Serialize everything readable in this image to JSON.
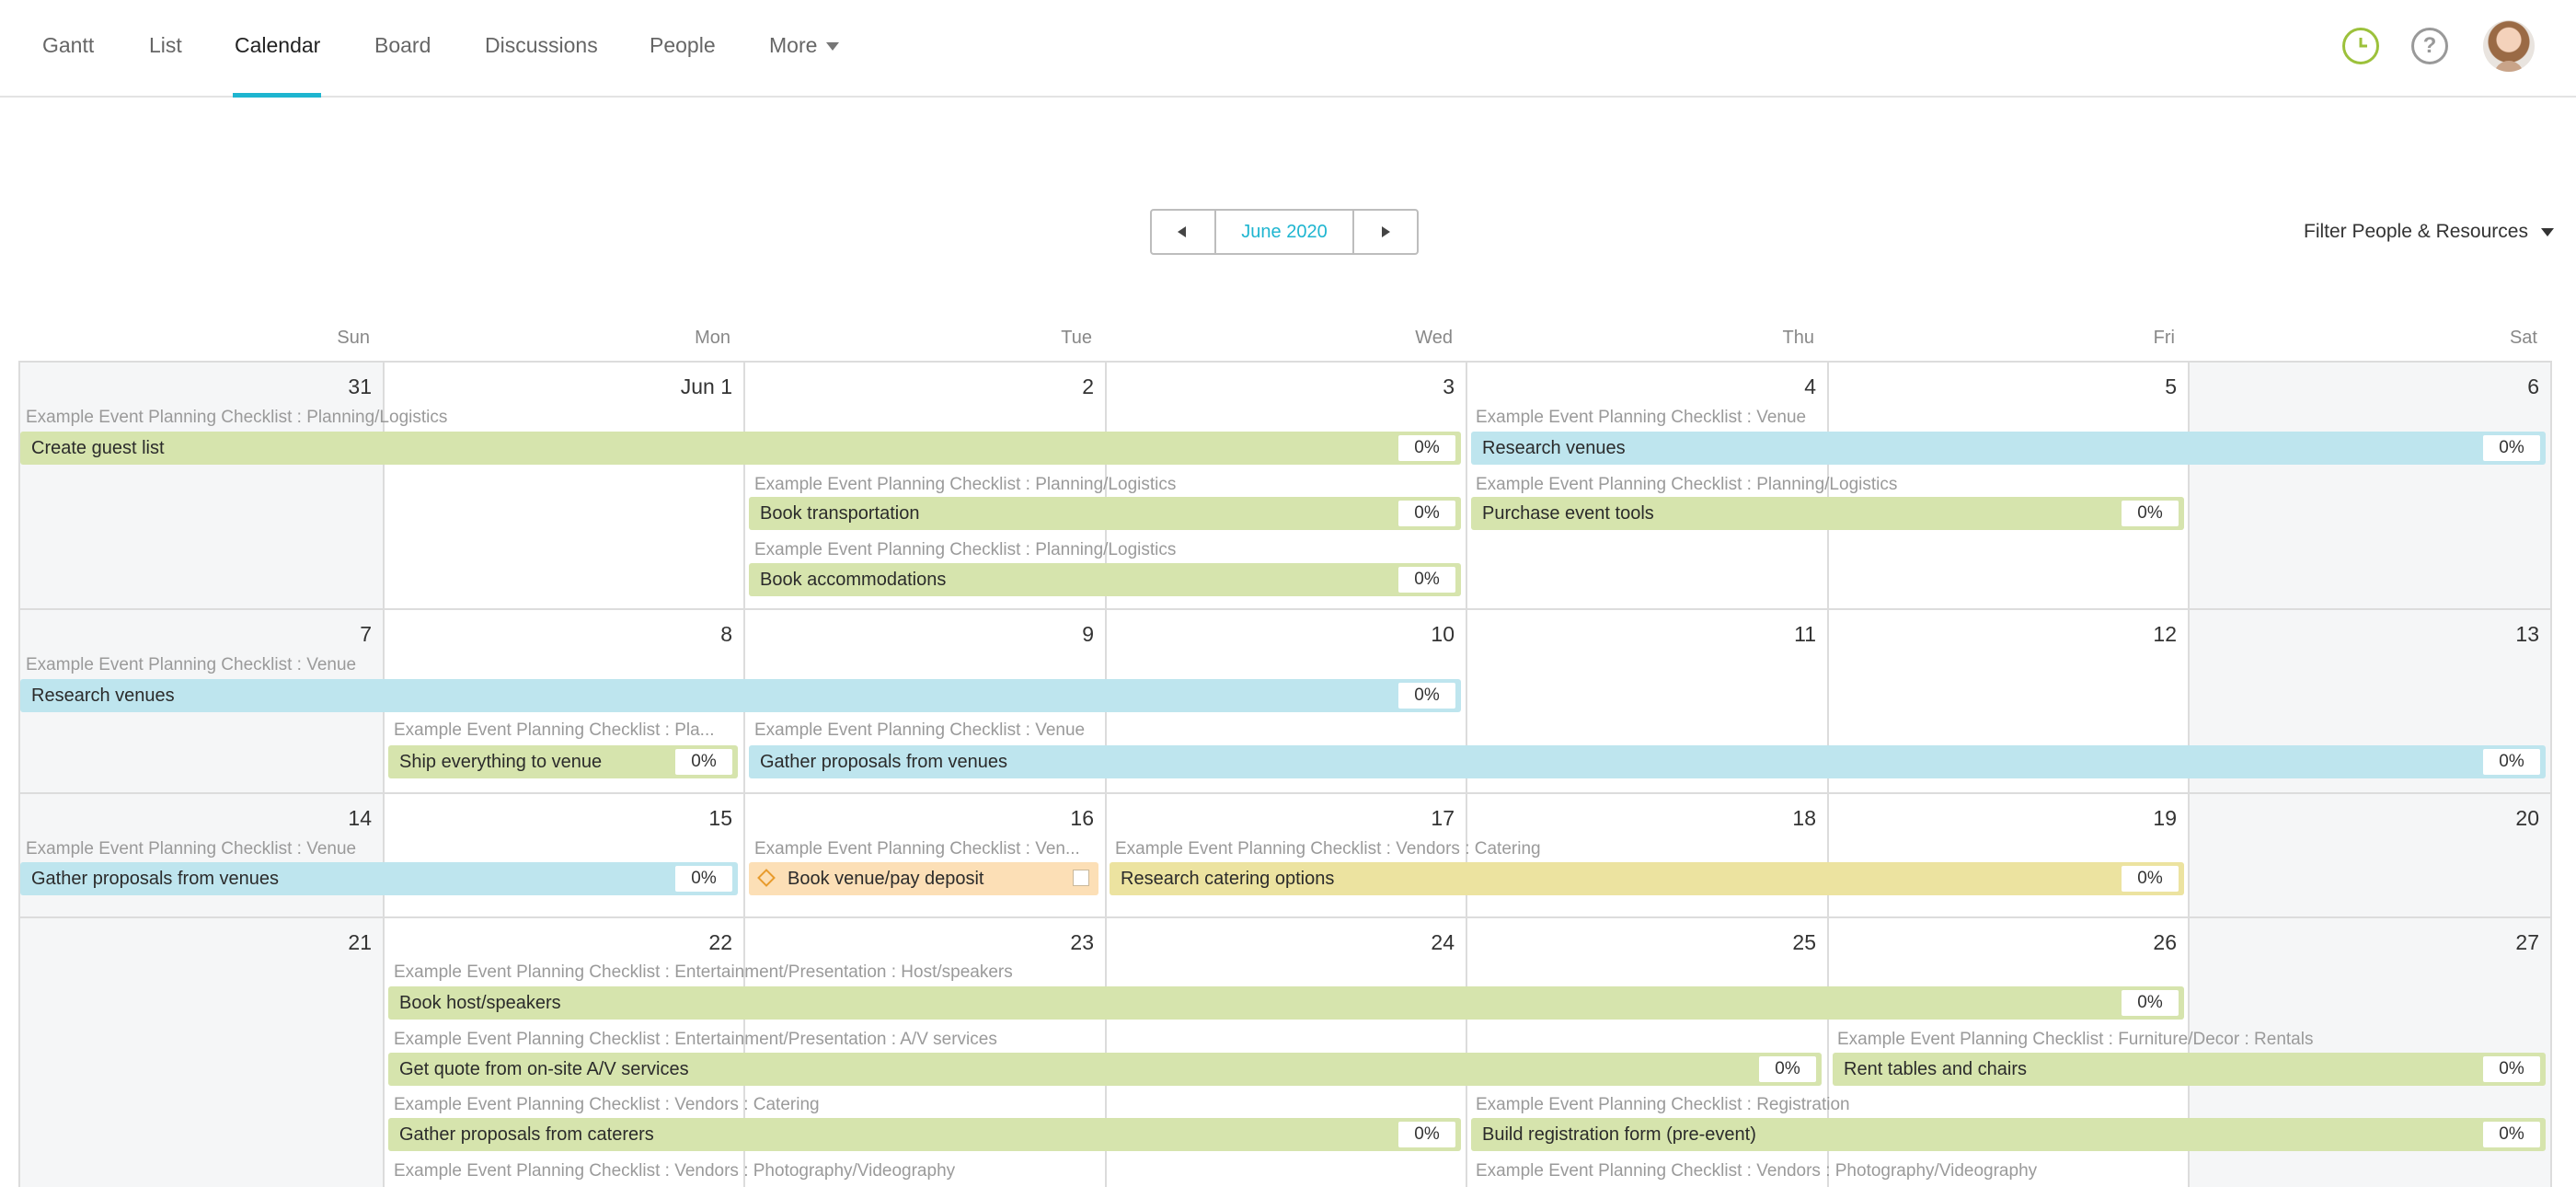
{
  "nav": {
    "tabs": [
      "Gantt",
      "List",
      "Calendar",
      "Board",
      "Discussions",
      "People",
      "More"
    ],
    "active_tab": "Calendar",
    "accent_color": "#1eb5d0",
    "icons": [
      "clock-icon",
      "help-icon",
      "avatar"
    ]
  },
  "month_nav": {
    "label": "June 2020"
  },
  "filter": {
    "label": "Filter People & Resources"
  },
  "calendar": {
    "weekdays": [
      "Sun",
      "Mon",
      "Tue",
      "Wed",
      "Thu",
      "Fri",
      "Sat"
    ],
    "weeks": [
      [
        "31",
        "Jun 1",
        "2",
        "3",
        "4",
        "5",
        "6"
      ],
      [
        "7",
        "8",
        "9",
        "10",
        "11",
        "12",
        "13"
      ],
      [
        "14",
        "15",
        "16",
        "17",
        "18",
        "19",
        "20"
      ],
      [
        "21",
        "22",
        "23",
        "24",
        "25",
        "26",
        "27"
      ]
    ],
    "context_labels": [
      "Example Event Planning Checklist : Planning/Logistics",
      "Example Event Planning Checklist : Venue",
      "Example Event Planning Checklist : Pla...",
      "Example Event Planning Checklist : Ven...",
      "Example Event Planning Checklist : Vendors : Catering",
      "Example Event Planning Checklist : Entertainment/Presentation : Host/speakers",
      "Example Event Planning Checklist : Entertainment/Presentation : A/V services",
      "Example Event Planning Checklist : Furniture/Decor : Rentals",
      "Example Event Planning Checklist : Registration",
      "Example Event Planning Checklist : Vendors : Photography/Videography"
    ],
    "tasks": [
      "Create guest list",
      "Research venues",
      "Book transportation",
      "Purchase event tools",
      "Book accommodations",
      "Ship everything to venue",
      "Gather proposals from venues",
      "Book venue/pay deposit",
      "Research catering options",
      "Book host/speakers",
      "Get quote from on-site A/V services",
      "Rent tables and chairs",
      "Gather proposals from caterers",
      "Build registration form (pre-event)"
    ],
    "percent_value": "0%",
    "colors": {
      "green": "#d6e4ad",
      "blue": "#bee5ee",
      "yellow": "#ece3a0",
      "orange": "#fcdfb6"
    }
  }
}
